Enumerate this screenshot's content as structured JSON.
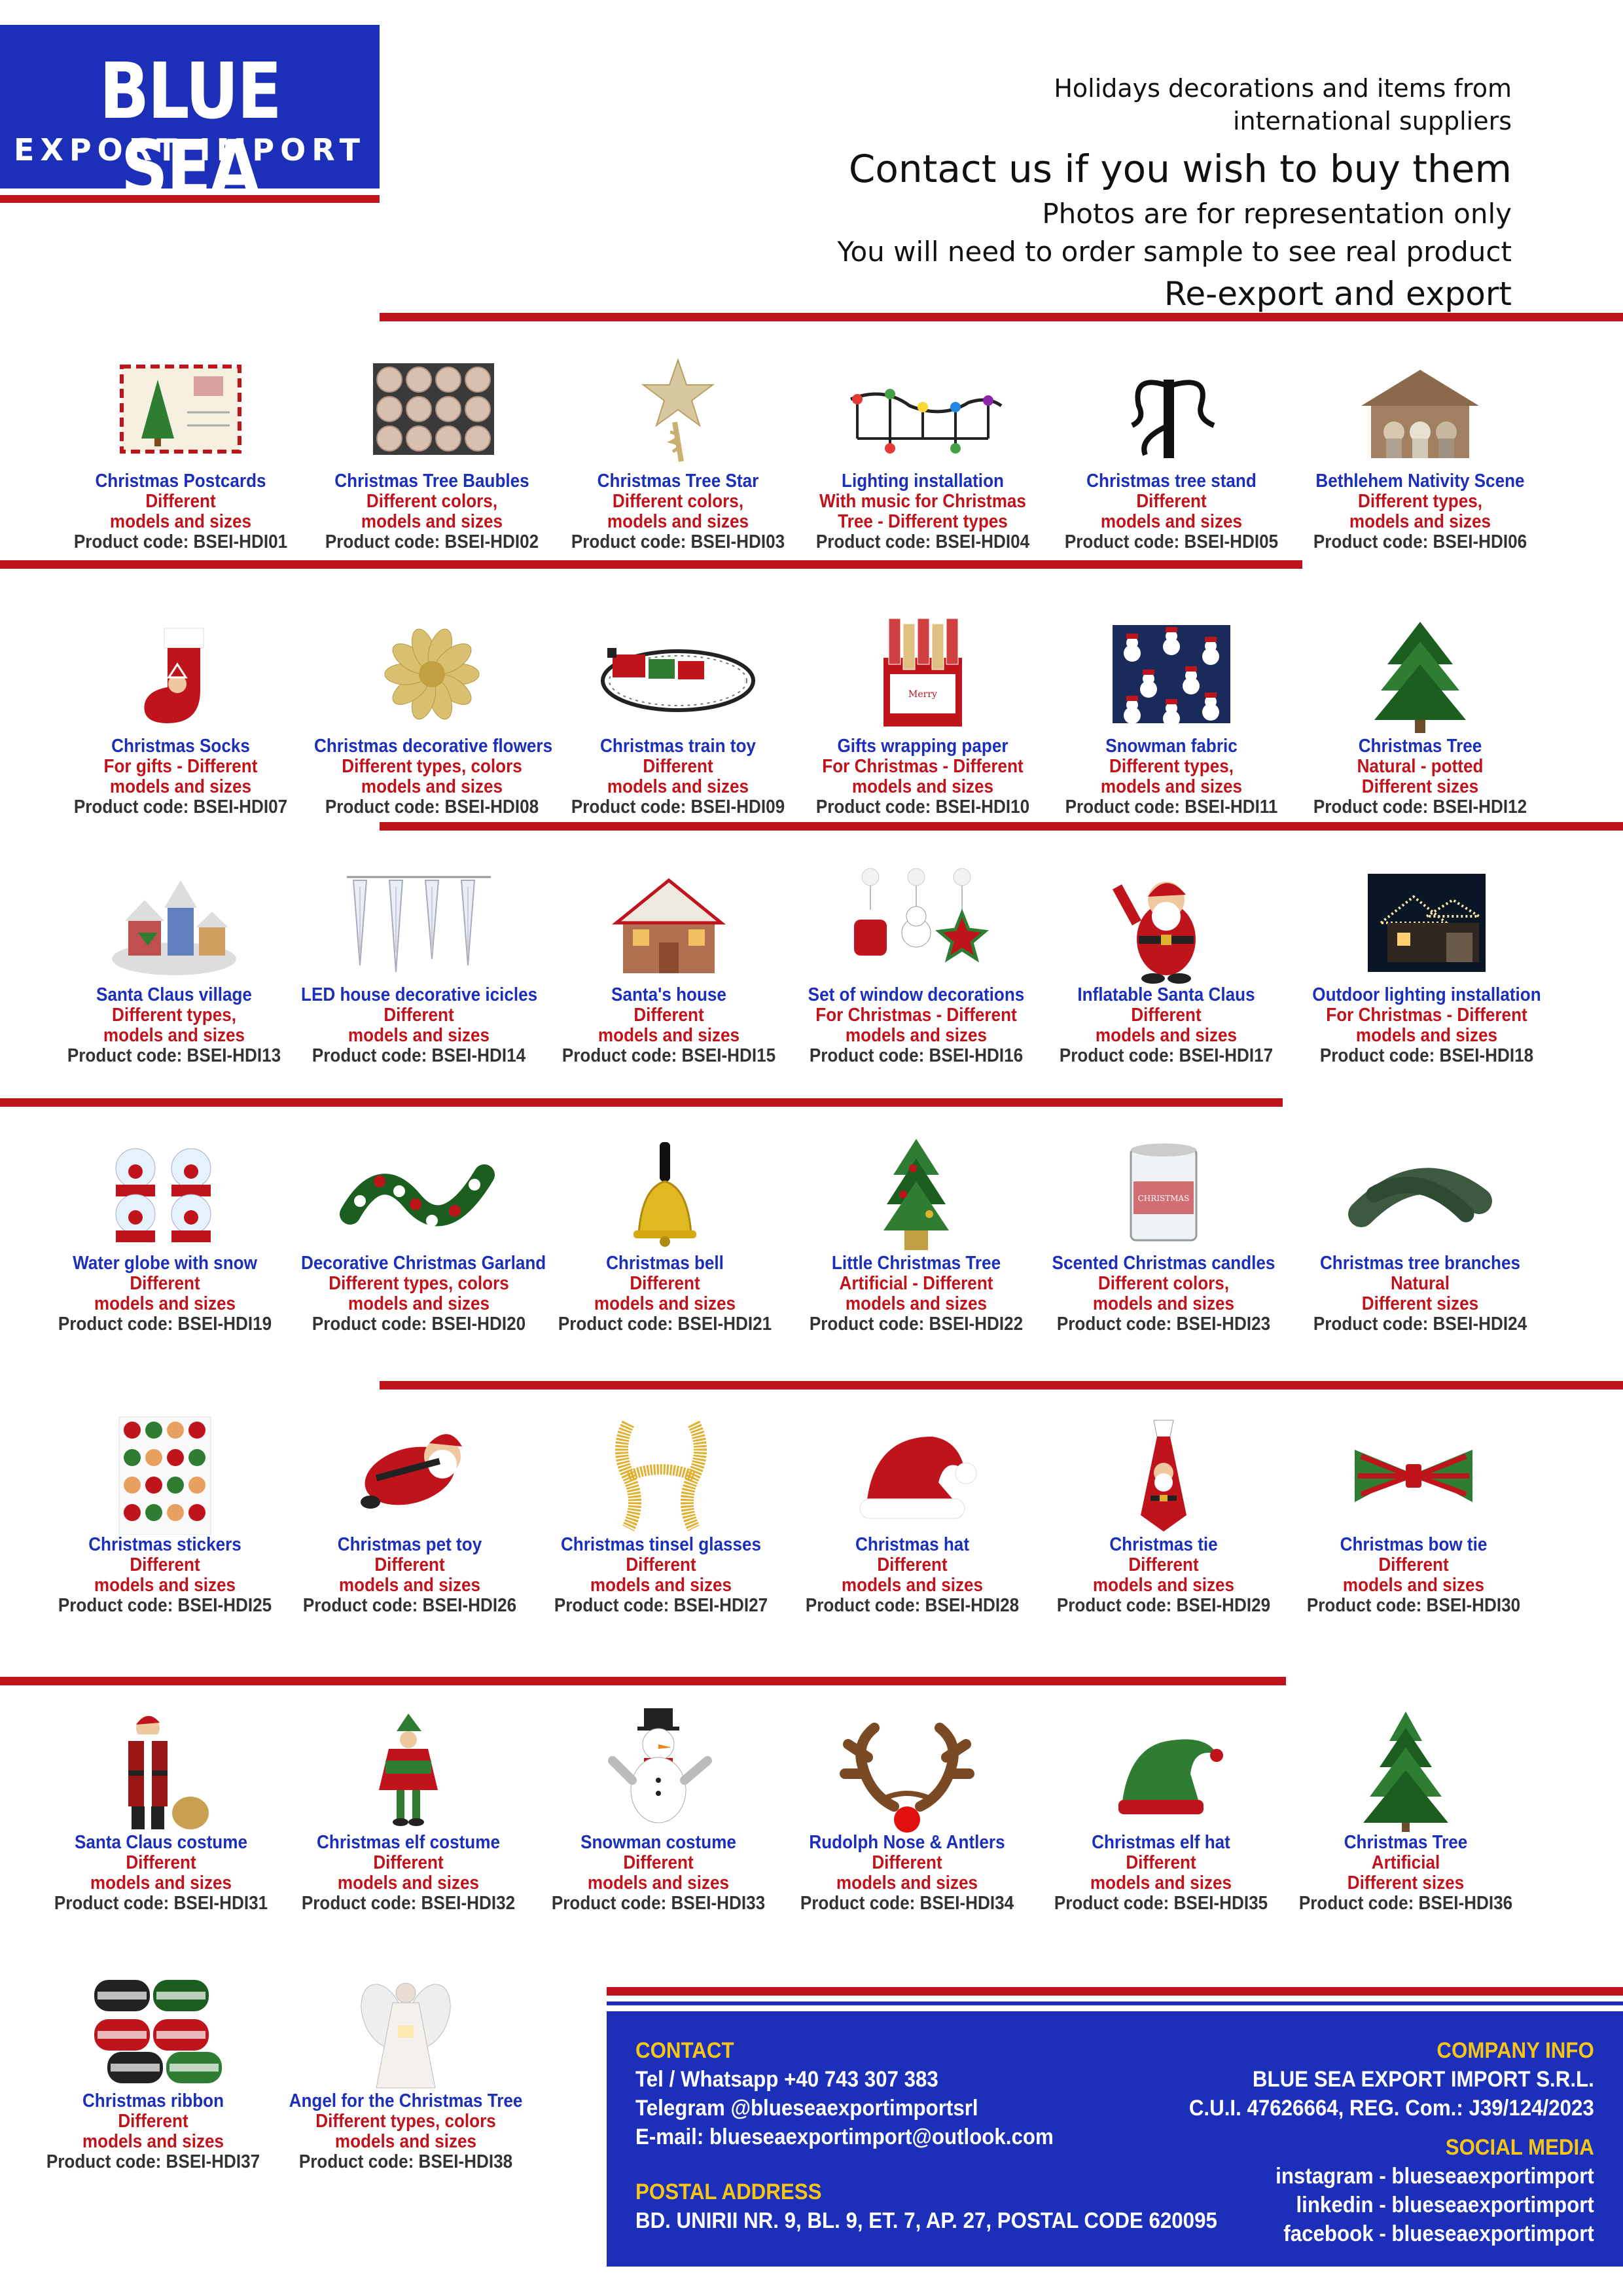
{
  "logo": {
    "main": "BLUE SEA",
    "sub": "EXPORT IMPORT"
  },
  "header": {
    "line1": "Holidays decorations and items from",
    "line2": "international suppliers",
    "contact": "Contact us if you wish to buy them",
    "photos": "Photos are for representation only",
    "sample": "You will need to order sample to see real product",
    "reexport": "Re-export and export"
  },
  "colors": {
    "blue": "#1b2fb8",
    "red": "#c0141c",
    "yellow": "#f5c518"
  },
  "items": [
    {
      "name": "Christmas Postcards",
      "desc1": "Different",
      "desc2": "models and sizes",
      "code": "Product code: BSEI-HDI01",
      "icon": "postcard-icon"
    },
    {
      "name": "Christmas Tree Baubles",
      "desc1": "Different colors,",
      "desc2": "models and sizes",
      "code": "Product code: BSEI-HDI02",
      "icon": "baubles-icon"
    },
    {
      "name": "Christmas Tree Star",
      "desc1": "Different colors,",
      "desc2": "models and sizes",
      "code": "Product code: BSEI-HDI03",
      "icon": "star-icon"
    },
    {
      "name": "Lighting installation",
      "desc1": "With music for Christmas",
      "desc2": "Tree - Different types",
      "code": "Product code: BSEI-HDI04",
      "icon": "lights-icon"
    },
    {
      "name": "Christmas tree stand",
      "desc1": "Different",
      "desc2": "models and sizes",
      "code": "Product code: BSEI-HDI05",
      "icon": "tree-stand-icon"
    },
    {
      "name": "Bethlehem Nativity Scene",
      "desc1": "Different types,",
      "desc2": "models and sizes",
      "code": "Product code: BSEI-HDI06",
      "icon": "nativity-icon"
    },
    {
      "name": "Christmas Socks",
      "desc1": "For gifts - Different",
      "desc2": "models and sizes",
      "code": "Product code: BSEI-HDI07",
      "icon": "stocking-icon"
    },
    {
      "name": "Christmas decorative flowers",
      "desc1": "Different types, colors",
      "desc2": "models and sizes",
      "code": "Product code: BSEI-HDI08",
      "icon": "flower-icon"
    },
    {
      "name": "Christmas train toy",
      "desc1": "Different",
      "desc2": "models and sizes",
      "code": "Product code: BSEI-HDI09",
      "icon": "train-icon"
    },
    {
      "name": "Gifts wrapping paper",
      "desc1": "For Christmas -  Different",
      "desc2": "models and sizes",
      "code": "Product code: BSEI-HDI10",
      "icon": "wrapping-paper-icon"
    },
    {
      "name": "Snowman fabric",
      "desc1": "Different types,",
      "desc2": "models and sizes",
      "code": "Product code: BSEI-HDI11",
      "icon": "fabric-icon"
    },
    {
      "name": "Christmas Tree",
      "desc1": "Natural - potted",
      "desc2": "Different sizes",
      "code": "Product code: BSEI-HDI12",
      "icon": "tree-icon"
    },
    {
      "name": "Santa Claus village",
      "desc1": "Different types,",
      "desc2": "models and sizes",
      "code": "Product code: BSEI-HDI13",
      "icon": "village-icon"
    },
    {
      "name": "LED house decorative icicles",
      "desc1": "Different",
      "desc2": "models and sizes",
      "code": "Product code: BSEI-HDI14",
      "icon": "icicles-icon"
    },
    {
      "name": "Santa's house",
      "desc1": "Different",
      "desc2": "models and sizes",
      "code": "Product code: BSEI-HDI15",
      "icon": "house-icon"
    },
    {
      "name": "Set of window decorations",
      "desc1": "For Christmas -  Different",
      "desc2": "models and sizes",
      "code": "Product code: BSEI-HDI16",
      "icon": "window-deco-icon"
    },
    {
      "name": "Inflatable Santa Claus",
      "desc1": "Different",
      "desc2": "models and sizes",
      "code": "Product code: BSEI-HDI17",
      "icon": "santa-icon"
    },
    {
      "name": "Outdoor lighting installation",
      "desc1": "For Christmas -  Different",
      "desc2": "models and sizes",
      "code": "Product code: BSEI-HDI18",
      "icon": "outdoor-lights-icon"
    },
    {
      "name": "Water globe with snow",
      "desc1": "Different",
      "desc2": "models and sizes",
      "code": "Product code: BSEI-HDI19",
      "icon": "snow-globe-icon"
    },
    {
      "name": "Decorative Christmas Garland",
      "desc1": "Different types, colors",
      "desc2": "models and sizes",
      "code": "Product code: BSEI-HDI20",
      "icon": "garland-icon"
    },
    {
      "name": "Christmas bell",
      "desc1": "Different",
      "desc2": "models and sizes",
      "code": "Product code: BSEI-HDI21",
      "icon": "bell-icon"
    },
    {
      "name": "Little Christmas Tree",
      "desc1": "Artificial - Different",
      "desc2": "models and sizes",
      "code": "Product code: BSEI-HDI22",
      "icon": "small-tree-icon"
    },
    {
      "name": "Scented Christmas candles",
      "desc1": "Different colors,",
      "desc2": "models and sizes",
      "code": "Product code: BSEI-HDI23",
      "icon": "candle-icon"
    },
    {
      "name": "Christmas tree branches",
      "desc1": "Natural",
      "desc2": "Different sizes",
      "code": "Product code: BSEI-HDI24",
      "icon": "branches-icon"
    },
    {
      "name": "Christmas stickers",
      "desc1": "Different",
      "desc2": "models and sizes",
      "code": "Product code: BSEI-HDI25",
      "icon": "stickers-icon"
    },
    {
      "name": "Christmas pet toy",
      "desc1": "Different",
      "desc2": "models and sizes",
      "code": "Product code: BSEI-HDI26",
      "icon": "pet-toy-icon"
    },
    {
      "name": "Christmas tinsel glasses",
      "desc1": "Different",
      "desc2": "models and sizes",
      "code": "Product code: BSEI-HDI27",
      "icon": "tinsel-icon"
    },
    {
      "name": "Christmas hat",
      "desc1": "Different",
      "desc2": "models and sizes",
      "code": "Product code: BSEI-HDI28",
      "icon": "santa-hat-icon"
    },
    {
      "name": "Christmas tie",
      "desc1": "Different",
      "desc2": "models and sizes",
      "code": "Product code: BSEI-HDI29",
      "icon": "tie-icon"
    },
    {
      "name": "Christmas bow tie",
      "desc1": "Different",
      "desc2": "models and sizes",
      "code": "Product code: BSEI-HDI30",
      "icon": "bow-tie-icon"
    },
    {
      "name": "Santa Claus costume",
      "desc1": "Different",
      "desc2": "models and sizes",
      "code": "Product code: BSEI-HDI31",
      "icon": "santa-costume-icon"
    },
    {
      "name": "Christmas elf costume",
      "desc1": "Different",
      "desc2": "models and sizes",
      "code": "Product code: BSEI-HDI32",
      "icon": "elf-costume-icon"
    },
    {
      "name": "Snowman costume",
      "desc1": "Different",
      "desc2": "models and sizes",
      "code": "Product code: BSEI-HDI33",
      "icon": "snowman-icon"
    },
    {
      "name": "Rudolph Nose & Antlers",
      "desc1": "Different",
      "desc2": "models and sizes",
      "code": "Product code: BSEI-HDI34",
      "icon": "antlers-icon"
    },
    {
      "name": "Christmas elf hat",
      "desc1": "Different",
      "desc2": "models and sizes",
      "code": "Product code: BSEI-HDI35",
      "icon": "elf-hat-icon"
    },
    {
      "name": "Christmas Tree",
      "desc1": "Artificial",
      "desc2": "Different sizes",
      "code": "Product code: BSEI-HDI36",
      "icon": "artificial-tree-icon"
    },
    {
      "name": "Christmas ribbon",
      "desc1": "Different",
      "desc2": "models and sizes",
      "code": "Product code: BSEI-HDI37",
      "icon": "ribbon-icon"
    },
    {
      "name": "Angel for the Christmas Tree",
      "desc1": "Different types, colors",
      "desc2": "models and sizes",
      "code": "Product code: BSEI-HDI38",
      "icon": "angel-icon"
    }
  ],
  "footer": {
    "contact_title": "CONTACT",
    "tel": "Tel / Whatsapp +40 743 307 383",
    "telegram": "Telegram @blueseaexportimportsrl",
    "email": "E-mail: blueseaexportimport@outlook.com",
    "postal_title": "POSTAL ADDRESS",
    "address": "BD. UNIRII NR. 9, BL. 9, ET. 7, AP. 27, POSTAL CODE 620095",
    "company_title": "COMPANY INFO",
    "company_name": "BLUE SEA EXPORT IMPORT S.R.L.",
    "cui": "C.U.I. 47626664, REG. Com.: J39/124/2023",
    "social_title": "SOCIAL MEDIA",
    "instagram": "instagram - blueseaexportimport",
    "linkedin": "linkedin - blueseaexportimport",
    "facebook": "facebook - blueseaexportimport"
  }
}
